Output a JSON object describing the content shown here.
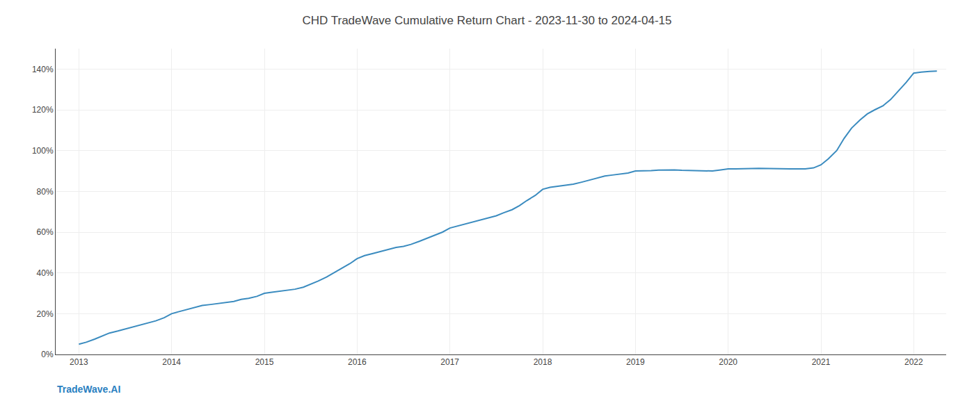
{
  "chart_data": {
    "type": "line",
    "title": "CHD TradeWave Cumulative Return Chart - 2023-11-30 to 2024-04-15",
    "annotations": [
      "TradeWave.AI"
    ],
    "color": "#3a8bbf",
    "grid": true,
    "x": [
      2013.0,
      2013.08,
      2013.17,
      2013.25,
      2013.33,
      2013.42,
      2013.5,
      2013.58,
      2013.67,
      2013.75,
      2013.83,
      2013.92,
      2014.0,
      2014.08,
      2014.17,
      2014.25,
      2014.33,
      2014.42,
      2014.5,
      2014.58,
      2014.67,
      2014.75,
      2014.83,
      2014.92,
      2015.0,
      2015.08,
      2015.17,
      2015.25,
      2015.33,
      2015.42,
      2015.5,
      2015.58,
      2015.67,
      2015.75,
      2015.83,
      2015.92,
      2016.0,
      2016.08,
      2016.17,
      2016.25,
      2016.33,
      2016.42,
      2016.5,
      2016.58,
      2016.67,
      2016.75,
      2016.83,
      2016.92,
      2017.0,
      2017.08,
      2017.17,
      2017.25,
      2017.33,
      2017.42,
      2017.5,
      2017.58,
      2017.67,
      2017.75,
      2017.83,
      2017.92,
      2018.0,
      2018.08,
      2018.17,
      2018.25,
      2018.33,
      2018.42,
      2018.5,
      2018.58,
      2018.67,
      2018.75,
      2018.83,
      2018.92,
      2019.0,
      2019.08,
      2019.17,
      2019.25,
      2019.33,
      2019.42,
      2019.5,
      2019.58,
      2019.67,
      2019.75,
      2019.83,
      2019.92,
      2020.0,
      2020.08,
      2020.17,
      2020.25,
      2020.33,
      2020.42,
      2020.5,
      2020.58,
      2020.67,
      2020.75,
      2020.83,
      2020.92,
      2021.0,
      2021.08,
      2021.17,
      2021.25,
      2021.33,
      2021.42,
      2021.5,
      2021.58,
      2021.67,
      2021.75,
      2021.83,
      2021.92,
      2022.0,
      2022.08,
      2022.17,
      2022.25
    ],
    "values": [
      5.0,
      6.0,
      7.5,
      9.0,
      10.5,
      11.5,
      12.5,
      13.5,
      14.5,
      15.5,
      16.5,
      18.0,
      20.0,
      21.0,
      22.0,
      23.0,
      24.0,
      24.5,
      25.0,
      25.5,
      26.0,
      27.0,
      27.5,
      28.5,
      30.0,
      30.5,
      31.0,
      31.5,
      32.0,
      33.0,
      34.5,
      36.0,
      38.0,
      40.0,
      42.0,
      44.5,
      47.0,
      48.5,
      49.5,
      50.5,
      51.5,
      52.5,
      53.0,
      54.0,
      55.5,
      57.0,
      58.5,
      60.0,
      62.0,
      63.0,
      64.0,
      65.0,
      66.0,
      67.0,
      68.0,
      69.5,
      71.0,
      73.0,
      75.5,
      78.0,
      81.0,
      82.0,
      82.5,
      83.0,
      83.5,
      84.5,
      85.5,
      86.5,
      87.5,
      88.0,
      88.5,
      89.0,
      90.0,
      90.0,
      90.2,
      90.4,
      90.5,
      90.5,
      90.3,
      90.2,
      90.0,
      90.0,
      90.0,
      90.5,
      91.0,
      91.0,
      91.0,
      91.2,
      91.3,
      91.2,
      91.0,
      91.0,
      91.0,
      91.0,
      91.0,
      91.5,
      93.0,
      96.0,
      100.0,
      106.0,
      111.0,
      115.0,
      118.0,
      120.0,
      122.0,
      125.0,
      129.0,
      133.5,
      138.0,
      138.5,
      138.8,
      139.0
    ],
    "xlim": [
      2012.75,
      2022.35
    ],
    "xticks": [
      2013,
      2014,
      2015,
      2016,
      2017,
      2018,
      2019,
      2020,
      2021,
      2022
    ],
    "ylim": [
      0,
      150
    ],
    "yticks": [
      {
        "value": 0,
        "label": "0%"
      },
      {
        "value": 20,
        "label": "20%"
      },
      {
        "value": 40,
        "label": "40%"
      },
      {
        "value": 60,
        "label": "60%"
      },
      {
        "value": 80,
        "label": "80%"
      },
      {
        "value": 100,
        "label": "100%"
      },
      {
        "value": 120,
        "label": "120%"
      },
      {
        "value": 140,
        "label": "140%"
      }
    ]
  }
}
